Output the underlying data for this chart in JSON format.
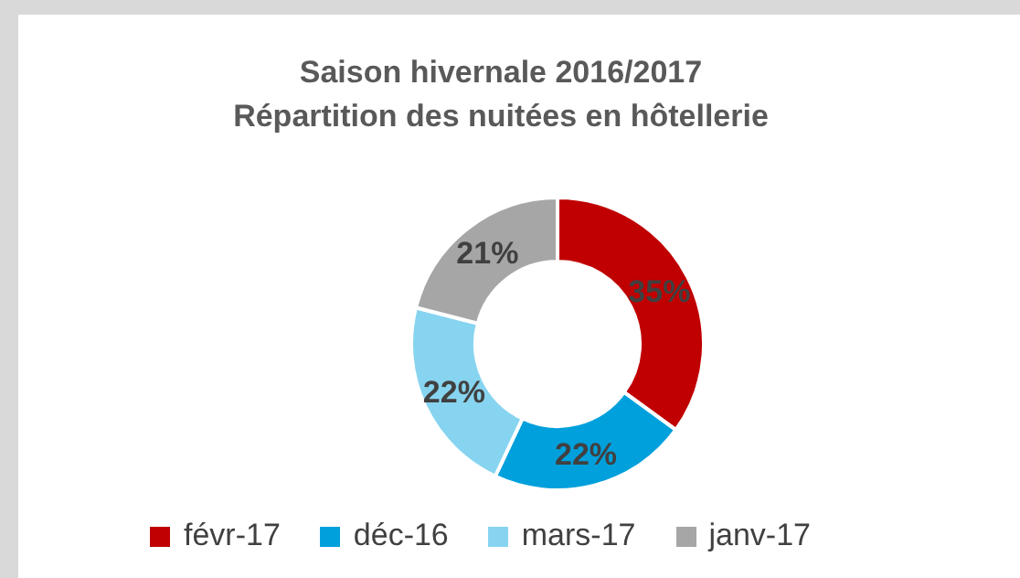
{
  "chart_data": {
    "type": "donut",
    "title": "Saison hivernale 2016/2017",
    "subtitle": "Répartition des nuitées en hôtellerie",
    "categories": [
      "févr-17",
      "déc-16",
      "mars-17",
      "janv-17"
    ],
    "values": [
      35,
      22,
      22,
      21
    ],
    "colors": [
      "#c00000",
      "#00a0dc",
      "#87d4f0",
      "#a6a6a6"
    ],
    "value_labels": [
      "35%",
      "22%",
      "22%",
      "21%"
    ],
    "legend": "bottom"
  }
}
